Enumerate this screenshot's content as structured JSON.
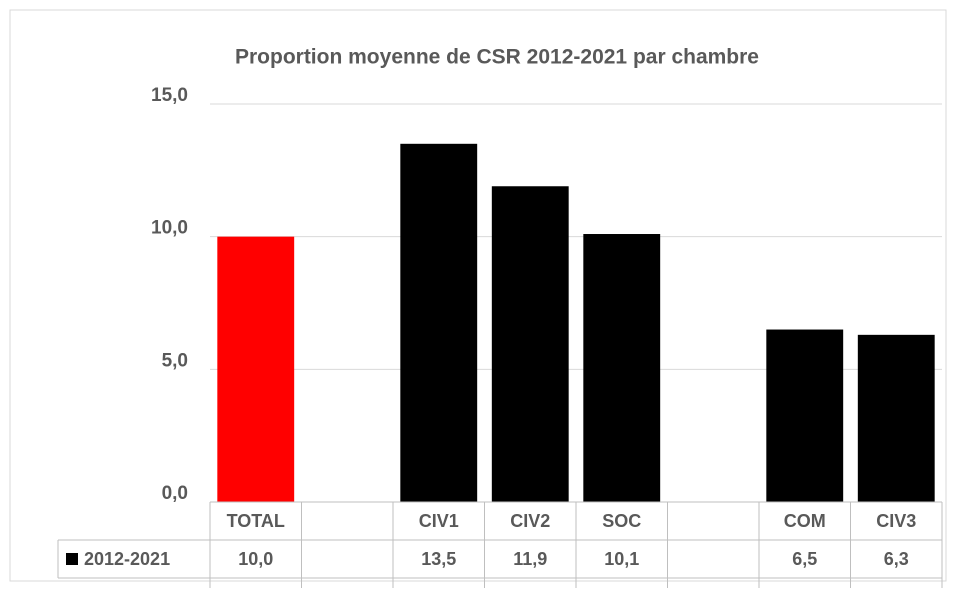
{
  "chart_data": {
    "type": "bar",
    "title": "Proportion moyenne de CSR 2012-2021  par chambre",
    "categories": [
      "TOTAL",
      null,
      "CIV1",
      "CIV2",
      "SOC",
      null,
      "COM",
      "CIV3"
    ],
    "series": [
      {
        "name": "2012-2021",
        "color": "#000000",
        "colors": [
          "#ff0000",
          null,
          "#000000",
          "#000000",
          "#000000",
          null,
          "#000000",
          "#000000"
        ],
        "values": [
          10.0,
          null,
          13.5,
          11.9,
          10.1,
          null,
          6.5,
          6.3
        ],
        "value_labels": [
          "10,0",
          null,
          "13,5",
          "11,9",
          "10,1",
          null,
          "6,5",
          "6,3"
        ]
      }
    ],
    "ylim": [
      0,
      15
    ],
    "yticks": [
      {
        "value": 0,
        "label": "0,0"
      },
      {
        "value": 5,
        "label": "5,0"
      },
      {
        "value": 10,
        "label": "10,0"
      },
      {
        "value": 15,
        "label": "15,0"
      }
    ],
    "grid": true,
    "data_table": true
  }
}
